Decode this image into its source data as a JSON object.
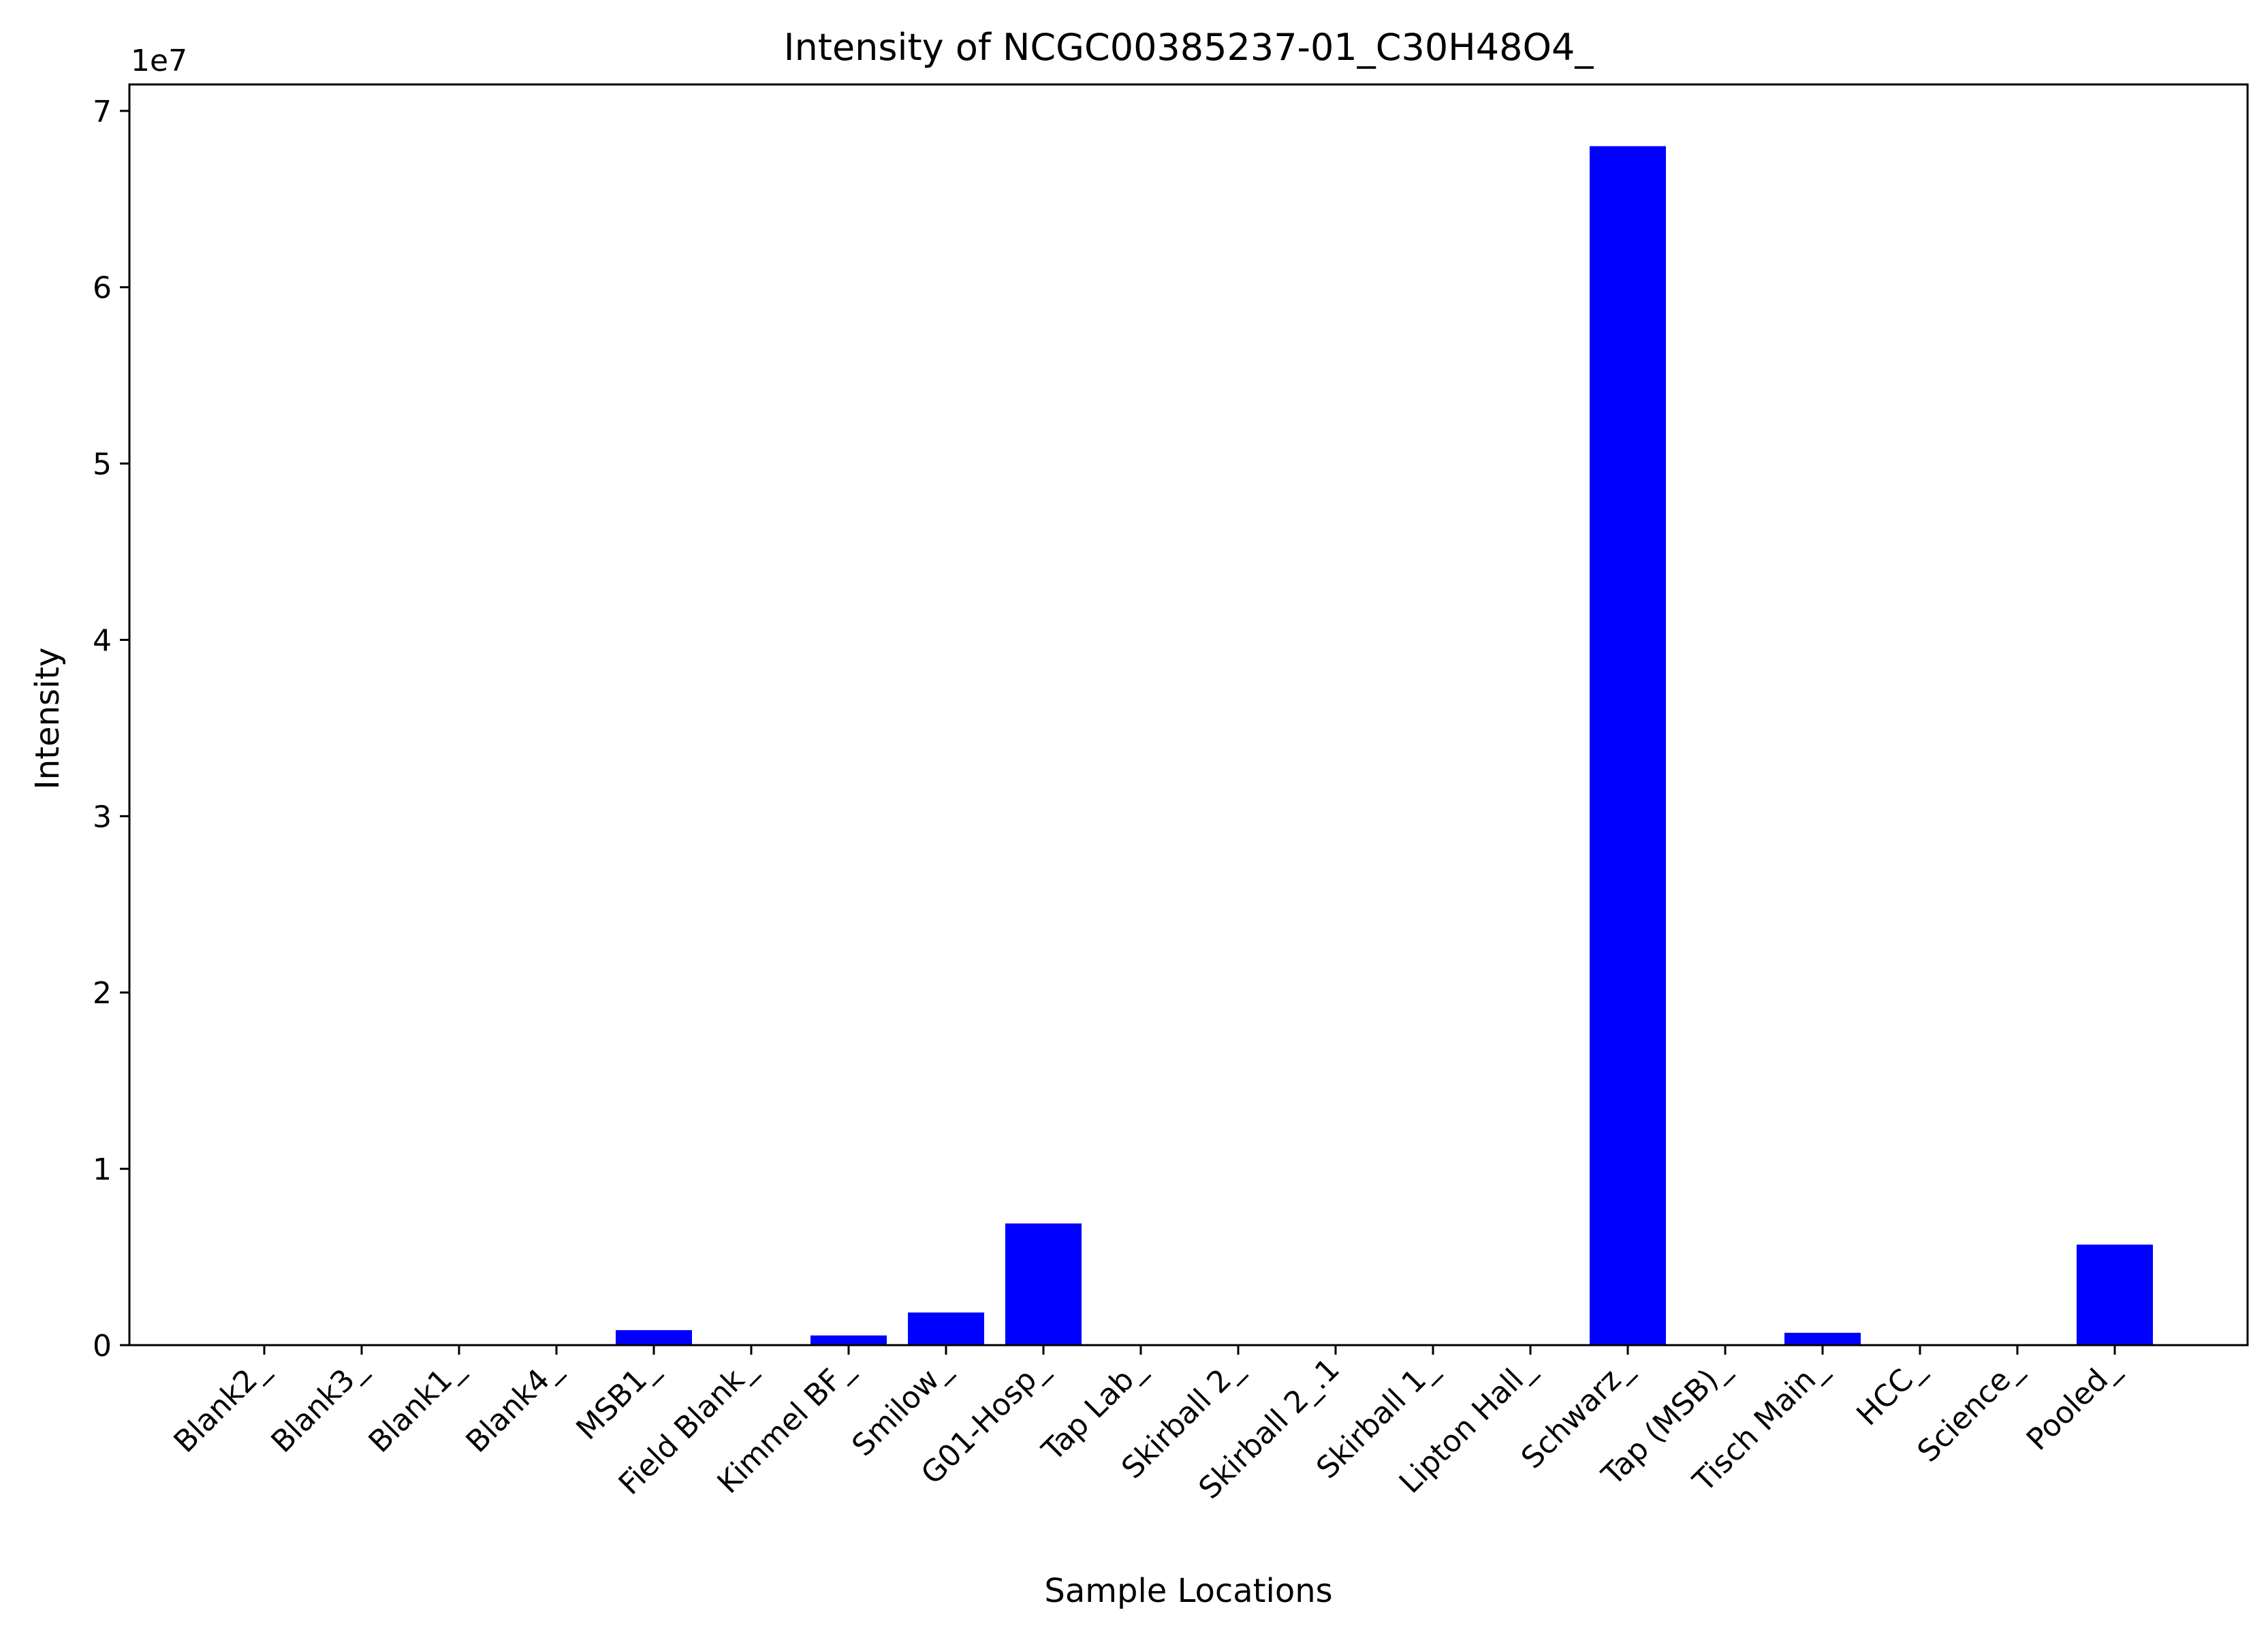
{
  "chart_data": {
    "type": "bar",
    "title": "Intensity of NCGC00385237-01_C30H48O4_",
    "xlabel": "Sample Locations",
    "ylabel": "Intensity",
    "y_offset_label": "1e7",
    "y_scale_factor": 10000000,
    "ylim": [
      0,
      71500000
    ],
    "yticks": [
      0,
      10000000,
      20000000,
      30000000,
      40000000,
      50000000,
      60000000,
      70000000
    ],
    "ytick_labels": [
      "0",
      "1",
      "2",
      "3",
      "4",
      "5",
      "6",
      "7"
    ],
    "categories": [
      "Blank2_",
      "Blank3_",
      "Blank1_",
      "Blank4_",
      "MSB1_",
      "Field Blank_",
      "Kimmel BF_",
      "Smilow_",
      "G01-Hosp_",
      "Tap Lab_",
      "Skirball 2_",
      "Skirball 2_.1",
      "Skirball 1_",
      "Lipton Hall_",
      "Schwarz_",
      "Tap (MSB)_",
      "Tisch Main_",
      "HCC_",
      "Science_",
      "Pooled_"
    ],
    "values": [
      0,
      0,
      0,
      0,
      850000,
      0,
      550000,
      1850000,
      6900000,
      0,
      0,
      0,
      0,
      0,
      68000000,
      0,
      700000,
      0,
      0,
      5700000
    ],
    "bar_color": "#0000ff",
    "grid": false,
    "legend": "none"
  }
}
